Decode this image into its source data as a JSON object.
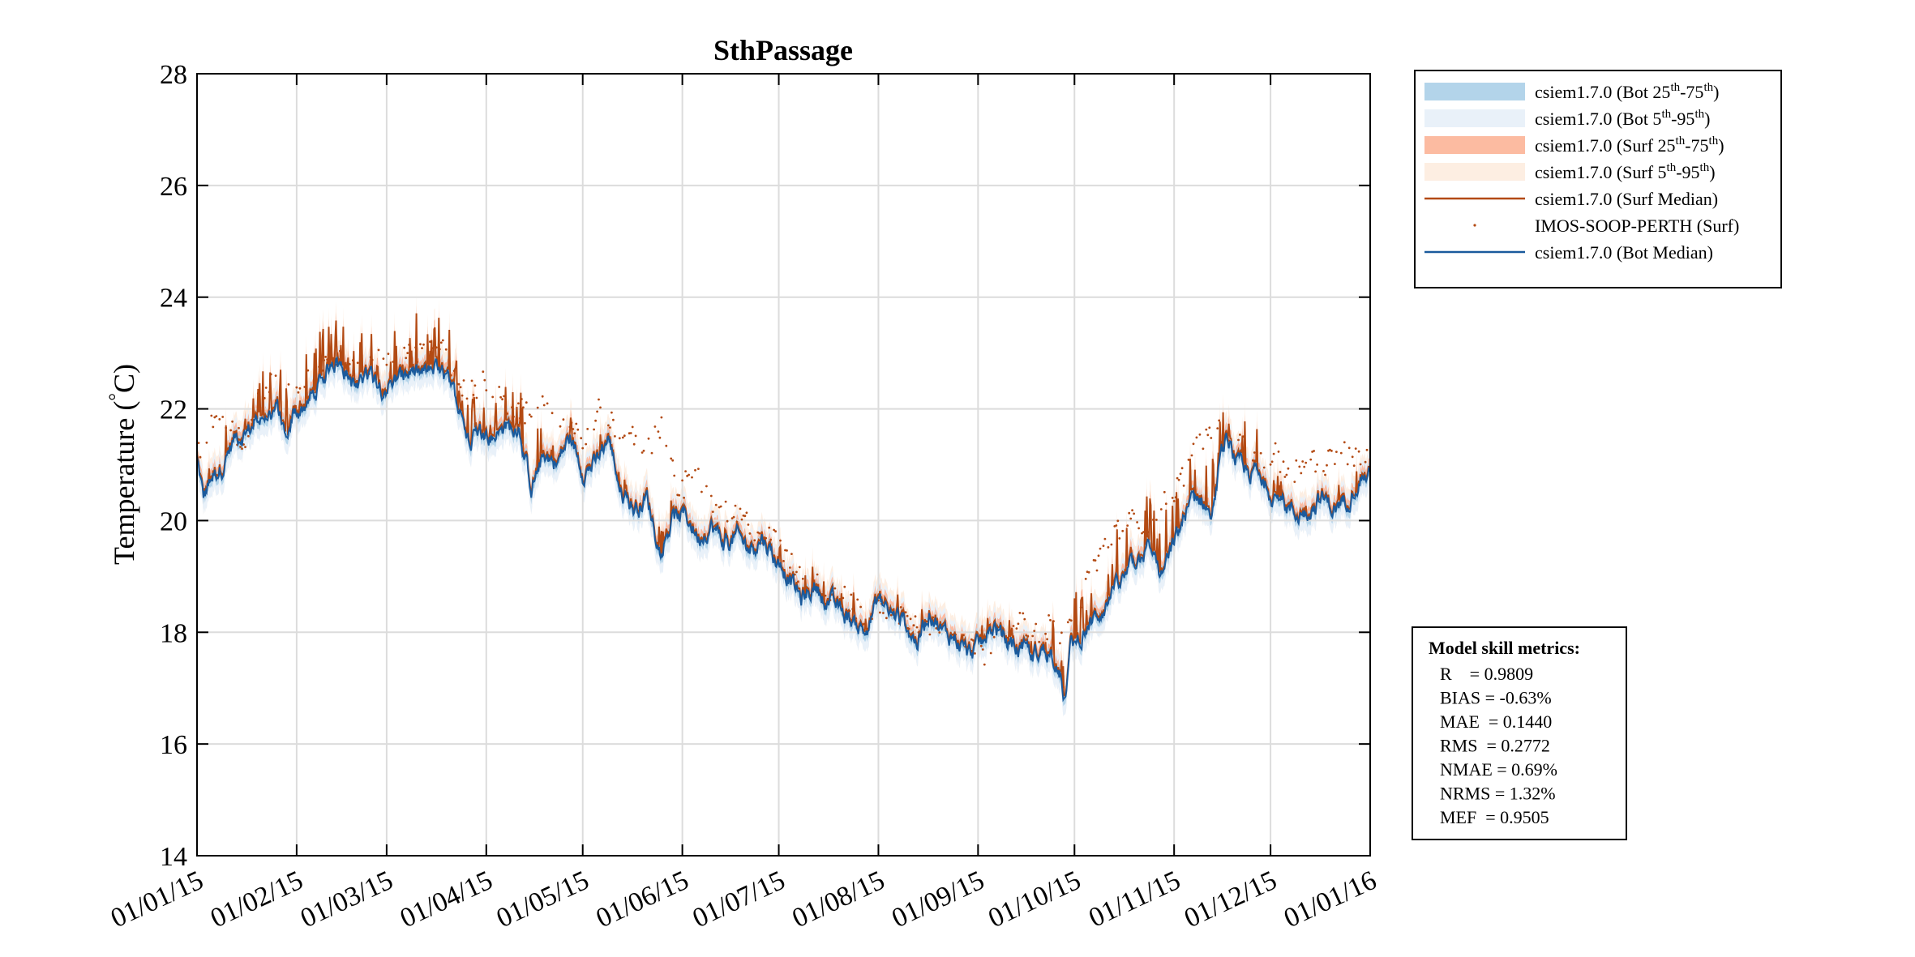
{
  "chart_data": {
    "type": "line",
    "title": "SthPassage",
    "ylabel": "Temperature (°C)",
    "ylabel_parts": {
      "main": "Temperature (",
      "degree": "°",
      "unit": "C)"
    },
    "xlabel": "",
    "ylim": [
      14,
      28
    ],
    "yticks": [
      14,
      16,
      18,
      20,
      22,
      24,
      26,
      28
    ],
    "xlim": [
      0,
      365
    ],
    "xticks": [
      {
        "label": "01/01/15",
        "day": 0
      },
      {
        "label": "01/02/15",
        "day": 31
      },
      {
        "label": "01/03/15",
        "day": 59
      },
      {
        "label": "01/04/15",
        "day": 90
      },
      {
        "label": "01/05/15",
        "day": 120
      },
      {
        "label": "01/06/15",
        "day": 151
      },
      {
        "label": "01/07/15",
        "day": 181
      },
      {
        "label": "01/08/15",
        "day": 212
      },
      {
        "label": "01/09/15",
        "day": 243
      },
      {
        "label": "01/10/15",
        "day": 273
      },
      {
        "label": "01/11/15",
        "day": 304
      },
      {
        "label": "01/12/15",
        "day": 334
      },
      {
        "label": "01/01/16",
        "day": 365
      }
    ],
    "grid": true,
    "bot_median_anchors": [
      [
        0,
        21.1
      ],
      [
        2,
        20.4
      ],
      [
        5,
        20.8
      ],
      [
        8,
        21.0
      ],
      [
        12,
        21.5
      ],
      [
        16,
        21.6
      ],
      [
        20,
        21.9
      ],
      [
        25,
        22.0
      ],
      [
        28,
        21.4
      ],
      [
        30,
        21.9
      ],
      [
        34,
        22.1
      ],
      [
        38,
        22.4
      ],
      [
        42,
        22.9
      ],
      [
        46,
        22.7
      ],
      [
        50,
        22.3
      ],
      [
        54,
        22.6
      ],
      [
        58,
        22.4
      ],
      [
        62,
        22.5
      ],
      [
        66,
        22.6
      ],
      [
        70,
        22.6
      ],
      [
        74,
        22.7
      ],
      [
        78,
        22.5
      ],
      [
        82,
        22.0
      ],
      [
        84,
        21.5
      ],
      [
        88,
        21.6
      ],
      [
        92,
        21.5
      ],
      [
        96,
        21.6
      ],
      [
        100,
        21.7
      ],
      [
        104,
        20.6
      ],
      [
        108,
        21.2
      ],
      [
        112,
        21.0
      ],
      [
        116,
        21.5
      ],
      [
        120,
        20.9
      ],
      [
        124,
        21.0
      ],
      [
        128,
        21.5
      ],
      [
        132,
        20.5
      ],
      [
        136,
        20.2
      ],
      [
        140,
        20.4
      ],
      [
        144,
        19.5
      ],
      [
        148,
        20.0
      ],
      [
        152,
        20.1
      ],
      [
        156,
        19.7
      ],
      [
        160,
        19.9
      ],
      [
        164,
        19.6
      ],
      [
        168,
        19.7
      ],
      [
        172,
        19.5
      ],
      [
        176,
        19.7
      ],
      [
        180,
        19.3
      ],
      [
        184,
        19.0
      ],
      [
        188,
        18.6
      ],
      [
        192,
        18.8
      ],
      [
        196,
        18.6
      ],
      [
        200,
        18.4
      ],
      [
        204,
        18.2
      ],
      [
        208,
        18.0
      ],
      [
        212,
        18.6
      ],
      [
        216,
        18.3
      ],
      [
        220,
        18.2
      ],
      [
        224,
        17.8
      ],
      [
        228,
        18.4
      ],
      [
        232,
        18.0
      ],
      [
        236,
        17.9
      ],
      [
        240,
        17.6
      ],
      [
        244,
        17.8
      ],
      [
        248,
        18.1
      ],
      [
        252,
        17.8
      ],
      [
        256,
        17.7
      ],
      [
        260,
        17.6
      ],
      [
        264,
        17.7
      ],
      [
        268,
        17.5
      ],
      [
        270,
        16.8
      ],
      [
        272,
        17.8
      ],
      [
        276,
        18.0
      ],
      [
        280,
        18.3
      ],
      [
        284,
        18.6
      ],
      [
        288,
        18.9
      ],
      [
        292,
        19.3
      ],
      [
        296,
        19.5
      ],
      [
        300,
        19.0
      ],
      [
        304,
        19.6
      ],
      [
        308,
        20.2
      ],
      [
        312,
        20.4
      ],
      [
        316,
        20.2
      ],
      [
        318,
        20.9
      ],
      [
        320,
        21.4
      ],
      [
        322,
        21.2
      ],
      [
        326,
        20.8
      ],
      [
        330,
        20.9
      ],
      [
        334,
        20.5
      ],
      [
        338,
        20.3
      ],
      [
        342,
        20.1
      ],
      [
        346,
        20.2
      ],
      [
        350,
        20.4
      ],
      [
        354,
        20.2
      ],
      [
        358,
        20.4
      ],
      [
        362,
        20.8
      ],
      [
        365,
        20.8
      ]
    ],
    "obs_anchors": [
      [
        0,
        21.2
      ],
      [
        5,
        21.8
      ],
      [
        10,
        21.6
      ],
      [
        15,
        21.4
      ],
      [
        20,
        22.3
      ],
      [
        25,
        22.6
      ],
      [
        30,
        22.3
      ],
      [
        35,
        22.5
      ],
      [
        40,
        22.8
      ],
      [
        45,
        22.9
      ],
      [
        50,
        22.6
      ],
      [
        55,
        22.8
      ],
      [
        60,
        23.0
      ],
      [
        65,
        22.9
      ],
      [
        70,
        23.1
      ],
      [
        75,
        23.2
      ],
      [
        80,
        22.6
      ],
      [
        85,
        22.3
      ],
      [
        90,
        22.5
      ],
      [
        95,
        22.1
      ],
      [
        100,
        22.0
      ],
      [
        105,
        21.8
      ],
      [
        110,
        22.2
      ],
      [
        115,
        21.7
      ],
      [
        120,
        21.4
      ],
      [
        125,
        22.0
      ],
      [
        130,
        21.7
      ],
      [
        135,
        21.5
      ],
      [
        140,
        21.2
      ],
      [
        145,
        21.8
      ],
      [
        150,
        20.5
      ],
      [
        155,
        20.9
      ],
      [
        160,
        20.3
      ],
      [
        165,
        20.2
      ],
      [
        170,
        20.0
      ],
      [
        175,
        19.8
      ],
      [
        180,
        19.6
      ],
      [
        185,
        19.2
      ],
      [
        190,
        18.9
      ],
      [
        195,
        18.8
      ],
      [
        200,
        18.7
      ],
      [
        205,
        18.4
      ],
      [
        210,
        18.3
      ],
      [
        215,
        18.5
      ],
      [
        220,
        18.3
      ],
      [
        225,
        18.1
      ],
      [
        230,
        18.2
      ],
      [
        235,
        18.0
      ],
      [
        240,
        17.9
      ],
      [
        245,
        17.6
      ],
      [
        250,
        18.0
      ],
      [
        255,
        18.2
      ],
      [
        260,
        18.0
      ],
      [
        265,
        18.1
      ],
      [
        270,
        17.8
      ],
      [
        275,
        18.6
      ],
      [
        280,
        19.3
      ],
      [
        285,
        19.8
      ],
      [
        290,
        20.0
      ],
      [
        295,
        19.9
      ],
      [
        300,
        20.3
      ],
      [
        305,
        20.6
      ],
      [
        310,
        21.2
      ],
      [
        315,
        21.7
      ],
      [
        320,
        21.6
      ],
      [
        325,
        21.3
      ],
      [
        330,
        21.1
      ],
      [
        335,
        21.2
      ],
      [
        340,
        20.8
      ],
      [
        345,
        21.1
      ],
      [
        350,
        21.0
      ],
      [
        355,
        21.2
      ],
      [
        360,
        21.2
      ],
      [
        365,
        21.2
      ]
    ],
    "legend": {
      "placement": "outside-top-right",
      "entries": [
        {
          "id": "bot_iqr",
          "kind": "patch",
          "color": "#b3d4ea",
          "base": "csiem1.7.0 (Bot 25",
          "sup1": "th",
          "mid": "-75",
          "sup2": "th",
          "end": ")"
        },
        {
          "id": "bot_90",
          "kind": "patch",
          "color": "#e9f1f9",
          "base": "csiem1.7.0 (Bot 5",
          "sup1": "th",
          "mid": "-95",
          "sup2": "th",
          "end": ")"
        },
        {
          "id": "surf_iqr",
          "kind": "patch",
          "color": "#fcbba1",
          "base": "csiem1.7.0 (Surf 25",
          "sup1": "th",
          "mid": "-75",
          "sup2": "th",
          "end": ")"
        },
        {
          "id": "surf_90",
          "kind": "patch",
          "color": "#fdeee2",
          "base": "csiem1.7.0 (Surf 5",
          "sup1": "th",
          "mid": "-95",
          "sup2": "th",
          "end": ")"
        },
        {
          "id": "surf_median",
          "kind": "line",
          "color": "#b34a13",
          "text": "csiem1.7.0 (Surf Median)"
        },
        {
          "id": "obs",
          "kind": "dot",
          "color": "#b34a13",
          "text": "IMOS-SOOP-PERTH (Surf)"
        },
        {
          "id": "bot_median",
          "kind": "line",
          "color": "#1a5a9c",
          "text": "csiem1.7.0 (Bot Median)"
        }
      ]
    },
    "skill_metrics": {
      "title": "Model skill metrics:",
      "lines": [
        "R    = 0.9809",
        "BIAS = -0.63%",
        "MAE  = 0.1440",
        "RMS  = 0.2772",
        "NMAE = 0.69%",
        "NRMS = 1.32%",
        "MEF  = 0.9505"
      ]
    },
    "colors": {
      "bot_median": "#1a5a9c",
      "surf_median": "#b34a13",
      "bot_iqr": "#b3d4ea",
      "bot_90": "#e9f1f9",
      "surf_iqr": "#fcbba1",
      "surf_90": "#fdeee2",
      "grid": "#dcdcdc"
    }
  }
}
